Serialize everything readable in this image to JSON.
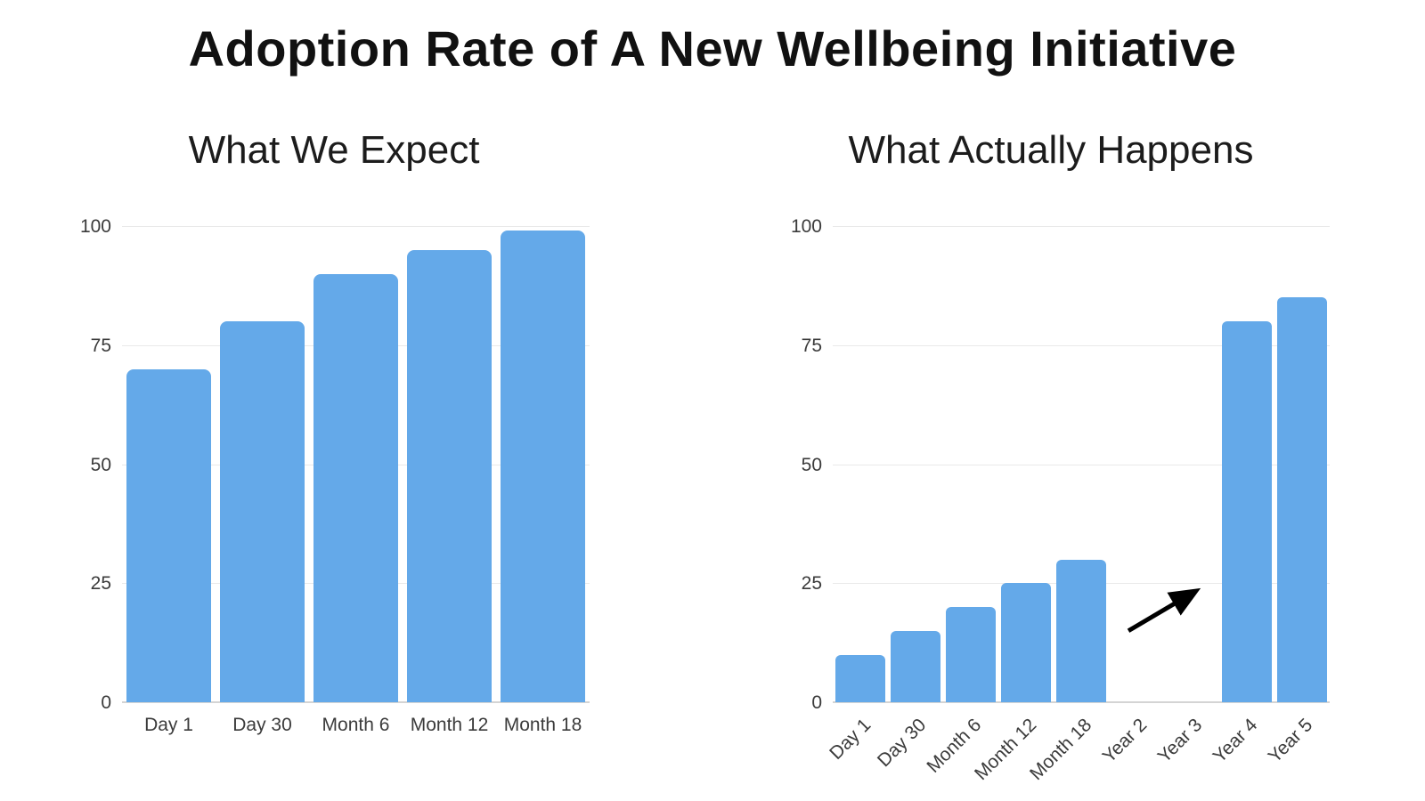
{
  "title": "Adoption Rate of A New Wellbeing Initiative",
  "accent_color": "#64a9e9",
  "grid_color": "#e9e9e9",
  "axis_color": "#d4d4d4",
  "chart_data": [
    {
      "type": "bar",
      "title": "What We Expect",
      "categories": [
        "Day 1",
        "Day 30",
        "Month 6",
        "Month 12",
        "Month 18"
      ],
      "values": [
        70,
        80,
        90,
        95,
        99
      ],
      "ylim": [
        0,
        100
      ],
      "yticks": [
        0,
        25,
        50,
        75,
        100
      ],
      "grid": true,
      "legend": "none",
      "bar_color": "#64a9e9",
      "x_tick_rotation": 0,
      "xlabel": "",
      "ylabel": ""
    },
    {
      "type": "bar",
      "title": "What Actually Happens",
      "categories": [
        "Day 1",
        "Day 30",
        "Month 6",
        "Month 12",
        "Month 18",
        "Year 2",
        "Year 3",
        "Year 4",
        "Year 5"
      ],
      "values": [
        10,
        15,
        20,
        25,
        30,
        0,
        0,
        80,
        85
      ],
      "ylim": [
        0,
        100
      ],
      "yticks": [
        0,
        25,
        50,
        75,
        100
      ],
      "grid": true,
      "legend": "none",
      "bar_color": "#64a9e9",
      "x_tick_rotation": -45,
      "xlabel": "",
      "ylabel": "",
      "annotation": {
        "type": "arrow",
        "x1_frac": 0.595,
        "y1_value": 15,
        "x2_frac": 0.725,
        "y2_value": 23,
        "color": "#000000",
        "stroke_width": 5
      }
    }
  ]
}
